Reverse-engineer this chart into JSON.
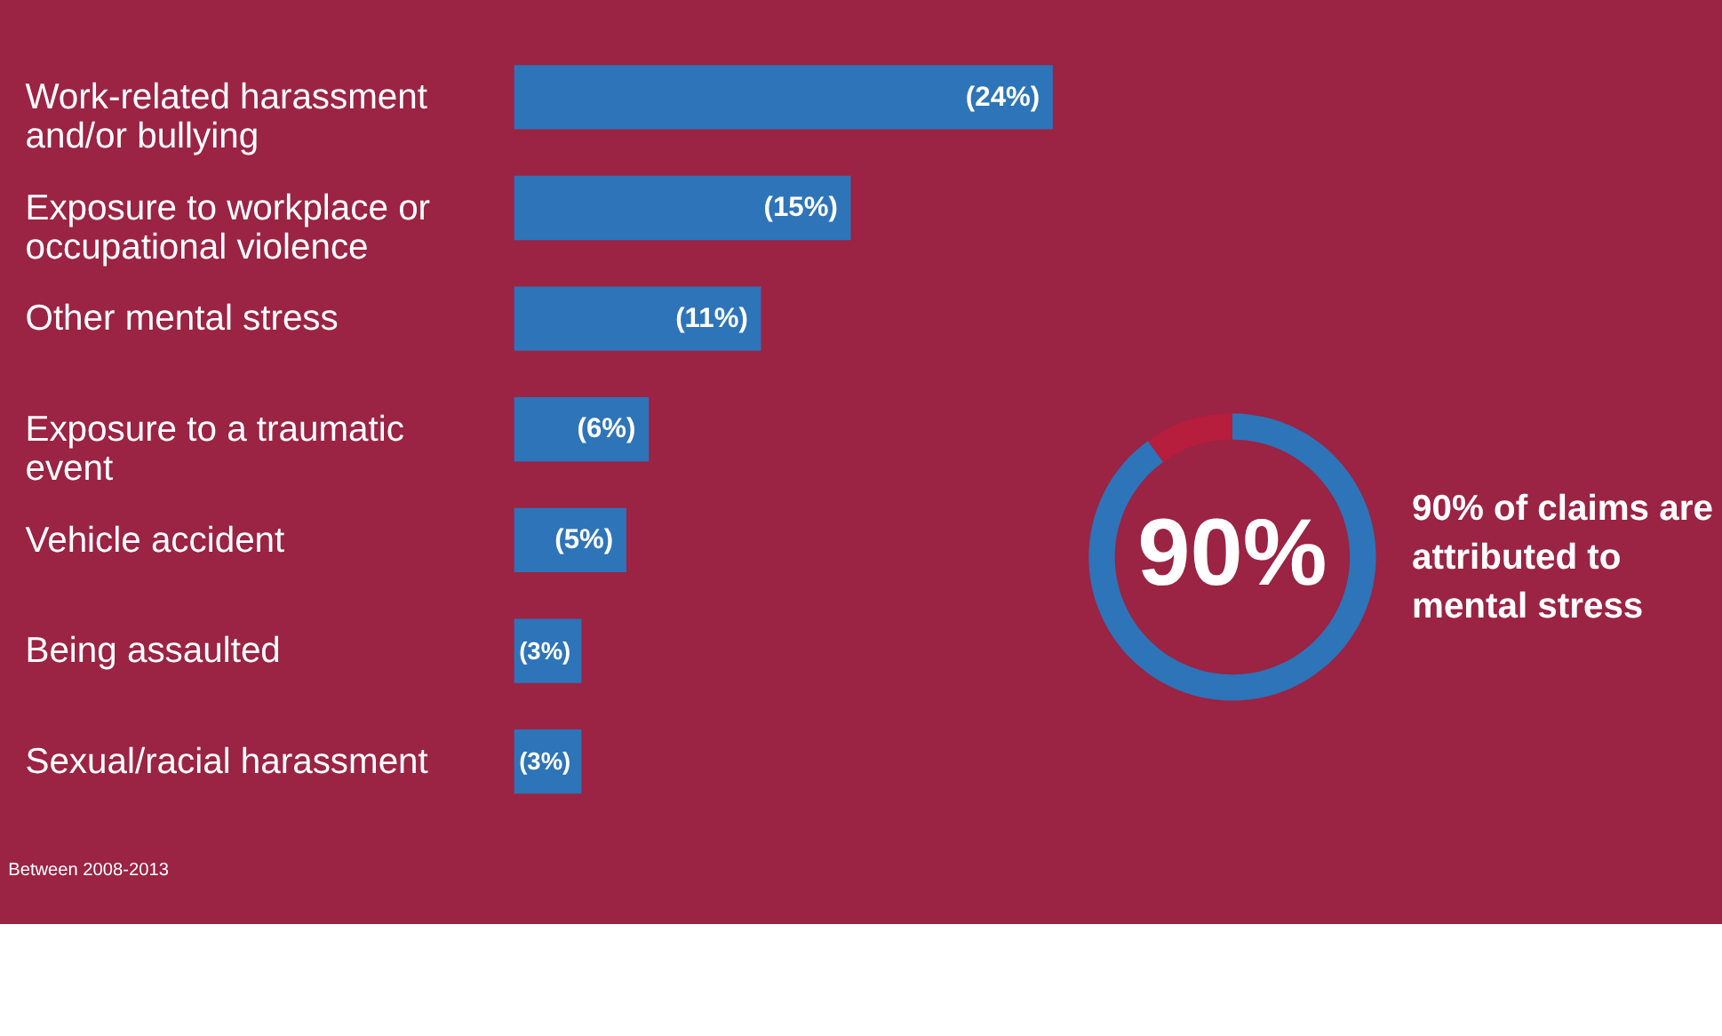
{
  "chart_data": [
    {
      "type": "bar",
      "orientation": "horizontal",
      "categories": [
        "Work-related harassment and/or bullying",
        "Exposure to workplace or occupational violence",
        "Other mental stress",
        "Exposure to a traumatic event",
        "Vehicle accident",
        "Being assaulted",
        "Sexual/racial harassment"
      ],
      "values": [
        24,
        15,
        11,
        6,
        5,
        3,
        3
      ],
      "value_labels": [
        "(24%)",
        "(15%)",
        "(11%)",
        "(6%)",
        "(5%)",
        "(3%)",
        "(3%)"
      ],
      "color": "#2e74b8",
      "tick_labels": "y",
      "grid": false,
      "annotations": [
        "Between 2008-2013"
      ]
    },
    {
      "type": "donut",
      "categories": [
        null,
        null
      ],
      "values": [
        90,
        10
      ],
      "colors": [
        "#2e74b8",
        "#b71d3c"
      ],
      "value_labels": [
        "90%",
        null
      ],
      "legend": false,
      "annotations": [
        "90% of claims are attributed to mental stress"
      ]
    }
  ]
}
